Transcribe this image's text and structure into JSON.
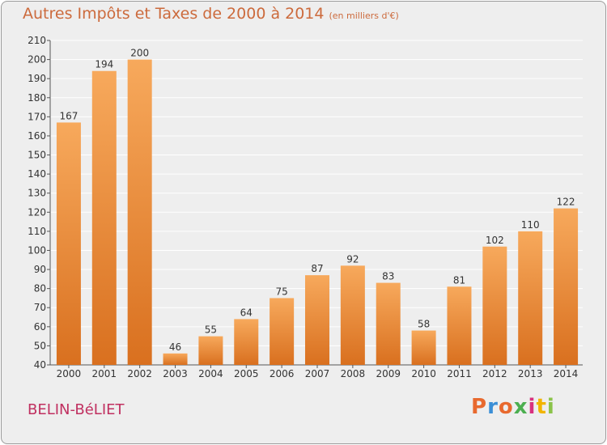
{
  "header": {
    "title": "Autres Impôts et Taxes de 2000 à 2014",
    "unit": "(en milliers d'€)"
  },
  "footer": {
    "commune": "BELIN-BéLIET",
    "logo": "Proxiti",
    "logo_colors": [
      "#e8692e",
      "#3b8fd6",
      "#e8692e",
      "#4caf50",
      "#d8317f",
      "#f2b400",
      "#8bc34a"
    ]
  },
  "colors": {
    "bar_top": "#f7a95c",
    "bar_bottom": "#d9701f",
    "grid": "#ffffff",
    "background": "#eeeeee"
  },
  "chart_data": {
    "type": "bar",
    "title": "Autres Impôts et Taxes de 2000 à 2014",
    "subtitle": "(en milliers d'€)",
    "xlabel": "",
    "ylabel": "",
    "categories": [
      "2000",
      "2001",
      "2002",
      "2003",
      "2004",
      "2005",
      "2006",
      "2007",
      "2008",
      "2009",
      "2010",
      "2011",
      "2012",
      "2013",
      "2014"
    ],
    "values": [
      167,
      194,
      200,
      46,
      55,
      64,
      75,
      87,
      92,
      83,
      58,
      81,
      102,
      110,
      122
    ],
    "ylim": [
      40,
      210
    ],
    "yticks": [
      40,
      50,
      60,
      70,
      80,
      90,
      100,
      110,
      120,
      130,
      140,
      150,
      160,
      170,
      180,
      190,
      200,
      210
    ],
    "grid": true,
    "legend": "none"
  }
}
